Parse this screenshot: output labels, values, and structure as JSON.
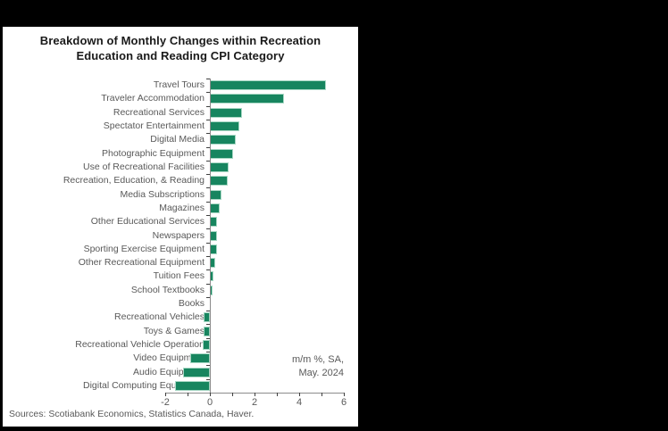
{
  "title": {
    "line1": "Breakdown of Monthly Changes within Recreation",
    "line2": "Education and Reading CPI Category"
  },
  "annotation": {
    "line1": "m/m %, SA,",
    "line2": "May. 2024"
  },
  "source": "Sources: Scotiabank Economics, Statistics Canada, Haver.",
  "colors": {
    "bar": "#17855f",
    "bar_edge": "#a9d8c5",
    "axis": "#8c8c8c",
    "tick": "#404040",
    "label": "#595959",
    "background": "#000000",
    "panel": "#ffffff"
  },
  "chart_data": {
    "type": "bar",
    "orientation": "horizontal",
    "title": "Breakdown of Monthly Changes within Recreation Education and Reading CPI Category",
    "units_note": "m/m %, SA, May. 2024",
    "xlim": [
      -2,
      6
    ],
    "x_tick_labels": [
      "-2",
      "0",
      "2",
      "4",
      "6"
    ],
    "x_tick_values": [
      -2,
      0,
      2,
      4,
      6
    ],
    "minor_tick_step": 1,
    "grid": false,
    "legend": "none",
    "categories": [
      "Travel Tours",
      "Traveler Accommodation",
      "Recreational Services",
      "Spectator Entertainment",
      "Digital Media",
      "Photographic Equipment",
      "Use of Recreational Facilities",
      "Recreation, Education, & Reading",
      "Media Subscriptions",
      "Magazines",
      "Other Educational Services",
      "Newspapers",
      "Sporting Exercise Equipment",
      "Other Recreational Equipment",
      "Tuition Fees",
      "School Textbooks",
      "Books",
      "Recreational Vehicles",
      "Toys & Games",
      "Recreational Vehicle Operation",
      "Video Equipment",
      "Audio Equipment",
      "Digital Computing Equipment"
    ],
    "values": [
      5.2,
      3.3,
      1.45,
      1.3,
      1.15,
      1.05,
      0.85,
      0.8,
      0.5,
      0.45,
      0.3,
      0.33,
      0.3,
      0.25,
      0.15,
      0.1,
      0.0,
      -0.3,
      -0.27,
      -0.33,
      -0.87,
      -1.2,
      -1.55
    ]
  }
}
